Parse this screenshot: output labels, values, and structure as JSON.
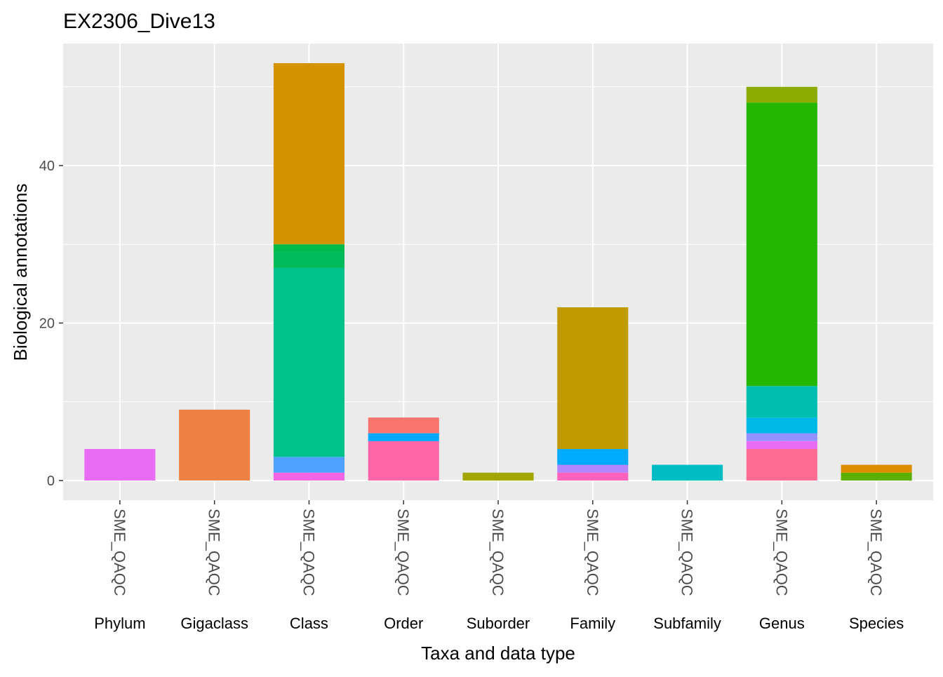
{
  "chart_data": {
    "type": "bar",
    "stacked": true,
    "title": "EX2306_Dive13",
    "xlabel": "Taxa and data type",
    "ylabel": "Biological annotations",
    "ylim": [
      -2.5,
      55.5
    ],
    "y_ticks": [
      0,
      20,
      40
    ],
    "grid": true,
    "legend": "none",
    "categories": [
      "Phylum",
      "Gigaclass",
      "Class",
      "Order",
      "Suborder",
      "Family",
      "Subfamily",
      "Genus",
      "Species"
    ],
    "sublabels": [
      "SME_QAQC",
      "SME_QAQC",
      "SME_QAQC",
      "SME_QAQC",
      "SME_QAQC",
      "SME_QAQC",
      "SME_QAQC",
      "SME_QAQC",
      "SME_QAQC"
    ],
    "stacks": [
      [
        {
          "value": 4,
          "color": "#E76BF3"
        }
      ],
      [
        {
          "value": 9,
          "color": "#EE8044"
        }
      ],
      [
        {
          "value": 1,
          "color": "#F564E3"
        },
        {
          "value": 2,
          "color": "#4FA2FF"
        },
        {
          "value": 24,
          "color": "#00C08B"
        },
        {
          "value": 2,
          "color": "#00BA5C"
        },
        {
          "value": 1,
          "color": "#00BA4C"
        },
        {
          "value": 23,
          "color": "#D39200"
        }
      ],
      [
        {
          "value": 5,
          "color": "#FF66A8"
        },
        {
          "value": 1,
          "color": "#00A9FF"
        },
        {
          "value": 2,
          "color": "#F8766D"
        }
      ],
      [
        {
          "value": 1,
          "color": "#A3A500"
        }
      ],
      [
        {
          "value": 1,
          "color": "#FF62BC"
        },
        {
          "value": 1,
          "color": "#B385FF"
        },
        {
          "value": 2,
          "color": "#00ABFD"
        },
        {
          "value": 18,
          "color": "#BF9B00"
        }
      ],
      [
        {
          "value": 2,
          "color": "#00BDC4"
        }
      ],
      [
        {
          "value": 4,
          "color": "#FF6C91"
        },
        {
          "value": 1,
          "color": "#E76BF3"
        },
        {
          "value": 1,
          "color": "#9590FF"
        },
        {
          "value": 2,
          "color": "#00B8E7"
        },
        {
          "value": 4,
          "color": "#00BFB0"
        },
        {
          "value": 36,
          "color": "#24B700"
        },
        {
          "value": 2,
          "color": "#8CAB00"
        }
      ],
      [
        {
          "value": 1,
          "color": "#5BAF00"
        },
        {
          "value": 1,
          "color": "#DB8E00"
        }
      ]
    ],
    "panel_color": "#EBEBEB",
    "grid_color": "#FFFFFF"
  }
}
